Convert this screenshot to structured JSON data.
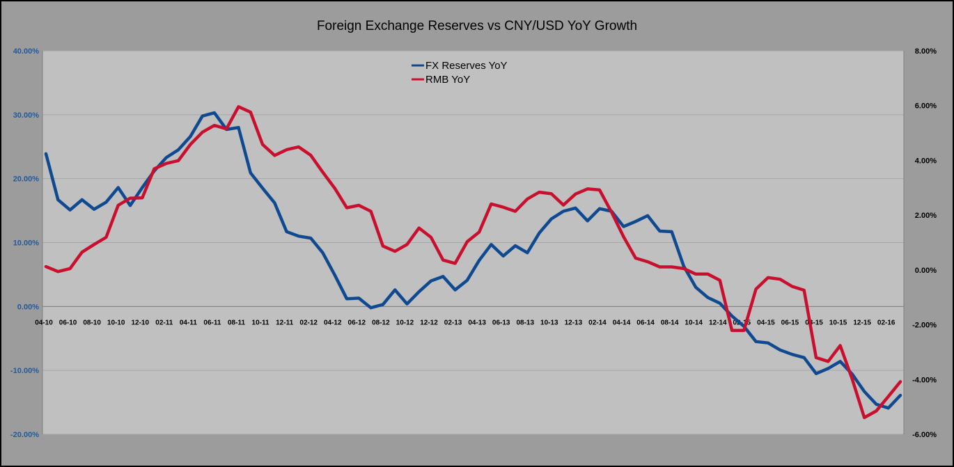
{
  "chart_data": {
    "type": "line",
    "title": "Foreign Exchange Reserves vs CNY/USD YoY Growth",
    "xlabel": "",
    "ylabel": "",
    "y_left_lim": [
      -20,
      40
    ],
    "y_right_lim": [
      -6,
      8
    ],
    "y_left_ticks": [
      "40.00%",
      "30.00%",
      "20.00%",
      "10.00%",
      "0.00%",
      "-10.00%",
      "-20.00%"
    ],
    "y_right_ticks": [
      "8.00%",
      "6.00%",
      "4.00%",
      "2.00%",
      "0.00%",
      "-2.00%",
      "-4.00%",
      "-6.00%"
    ],
    "x_tick_labels": [
      "04-10",
      "06-10",
      "08-10",
      "10-10",
      "12-10",
      "02-11",
      "04-11",
      "06-11",
      "08-11",
      "10-11",
      "12-11",
      "02-12",
      "04-12",
      "06-12",
      "08-12",
      "10-12",
      "12-12",
      "02-13",
      "04-13",
      "06-13",
      "08-13",
      "10-13",
      "12-13",
      "02-14",
      "04-14",
      "06-14",
      "08-14",
      "10-14",
      "12-14",
      "02-15",
      "04-15",
      "06-15",
      "08-15",
      "10-15",
      "12-15",
      "02-16"
    ],
    "legend_position": "top-center",
    "grid": true,
    "series": [
      {
        "name": "FX Reserves YoY",
        "axis": "left",
        "color": "#0f4a90",
        "values": [
          23.9,
          16.7,
          15.1,
          16.7,
          15.2,
          16.3,
          18.6,
          15.8,
          18.6,
          21.2,
          23.3,
          24.5,
          26.6,
          29.8,
          30.3,
          27.7,
          28.0,
          20.9,
          18.5,
          16.2,
          11.7,
          11.0,
          10.7,
          8.4,
          4.9,
          1.2,
          1.3,
          -0.2,
          0.3,
          2.6,
          0.4,
          2.3,
          4.0,
          4.7,
          2.6,
          4.1,
          7.2,
          9.7,
          7.9,
          9.5,
          8.4,
          11.5,
          13.7,
          14.9,
          15.4,
          13.4,
          15.3,
          14.9,
          12.5,
          13.3,
          14.2,
          11.8,
          11.7,
          6.3,
          3.0,
          1.4,
          0.5,
          -1.5,
          -3.1,
          -5.5,
          -5.7,
          -6.8,
          -7.5,
          -8.0,
          -10.5,
          -9.7,
          -8.6,
          -10.6,
          -13.3,
          -15.3,
          -15.9,
          -13.9
        ]
      },
      {
        "name": "RMB YoY",
        "axis": "right",
        "color": "#c8102e",
        "values": [
          0.12,
          -0.06,
          0.05,
          0.65,
          0.93,
          1.19,
          2.36,
          2.62,
          2.63,
          3.69,
          3.89,
          3.99,
          4.58,
          5.03,
          5.28,
          5.15,
          5.96,
          5.76,
          4.58,
          4.18,
          4.39,
          4.49,
          4.19,
          3.57,
          2.98,
          2.27,
          2.36,
          2.14,
          0.87,
          0.68,
          0.93,
          1.53,
          1.19,
          0.36,
          0.24,
          1.03,
          1.38,
          2.41,
          2.29,
          2.14,
          2.59,
          2.84,
          2.78,
          2.37,
          2.77,
          2.96,
          2.92,
          2.11,
          1.21,
          0.43,
          0.3,
          0.11,
          0.11,
          0.05,
          -0.15,
          -0.15,
          -0.38,
          -2.21,
          -2.21,
          -0.7,
          -0.28,
          -0.34,
          -0.6,
          -0.74,
          -3.2,
          -3.34,
          -2.76,
          -3.99,
          -5.39,
          -5.15,
          -4.62,
          -4.08
        ]
      }
    ]
  }
}
